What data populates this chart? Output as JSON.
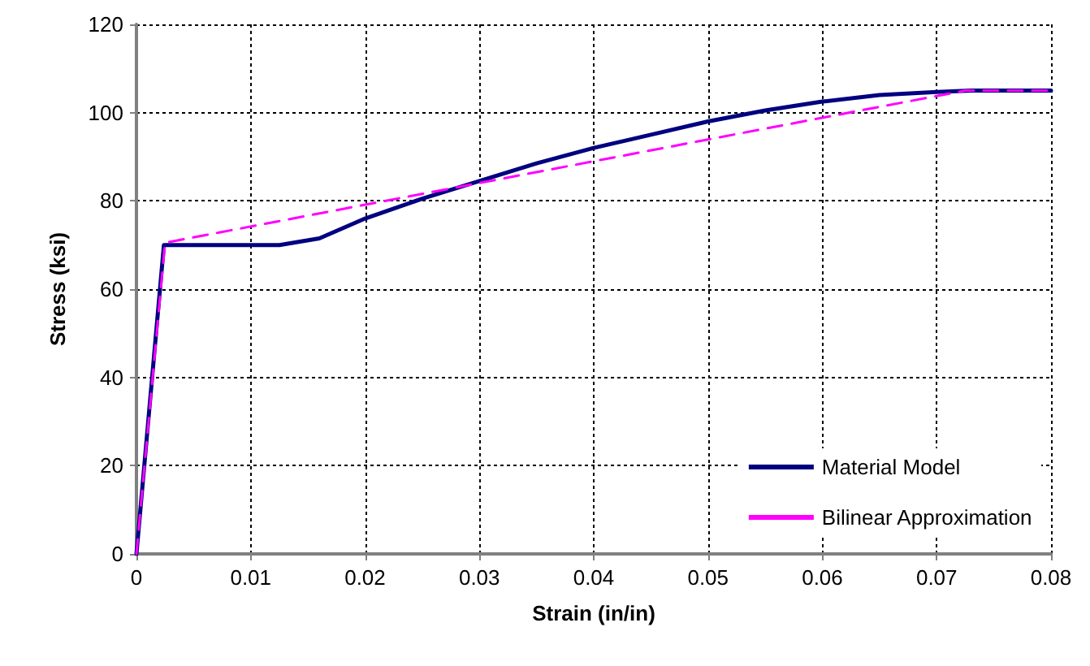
{
  "chart_data": {
    "type": "line",
    "xlabel": "Strain (in/in)",
    "ylabel": "Stress (ksi)",
    "xlim": [
      0,
      0.08
    ],
    "xticks": [
      0,
      0.01,
      0.02,
      0.03,
      0.04,
      0.05,
      0.06,
      0.07,
      0.08
    ],
    "ylim": [
      0,
      120
    ],
    "yticks": [
      0,
      20,
      40,
      60,
      80,
      100,
      120
    ],
    "grid": true,
    "legend": "bottom right",
    "marker": "none",
    "series": [
      {
        "name": "Material Model",
        "color": "#000080",
        "line_style": "solid",
        "x": [
          0,
          0.0024,
          0.0125,
          0.016,
          0.02,
          0.025,
          0.03,
          0.035,
          0.04,
          0.045,
          0.05,
          0.055,
          0.06,
          0.065,
          0.07,
          0.073,
          0.08
        ],
        "values": [
          0,
          70,
          70,
          71.5,
          76,
          80.5,
          84.5,
          88.5,
          92,
          95,
          98,
          100.5,
          102.5,
          104,
          104.7,
          105,
          105
        ]
      },
      {
        "name": "Bilinear Approximation",
        "color": "#ff00ff",
        "line_style": "dashed",
        "x": [
          0,
          0.0025,
          0.0725,
          0.08
        ],
        "values": [
          0,
          70.5,
          105,
          105
        ]
      }
    ]
  }
}
